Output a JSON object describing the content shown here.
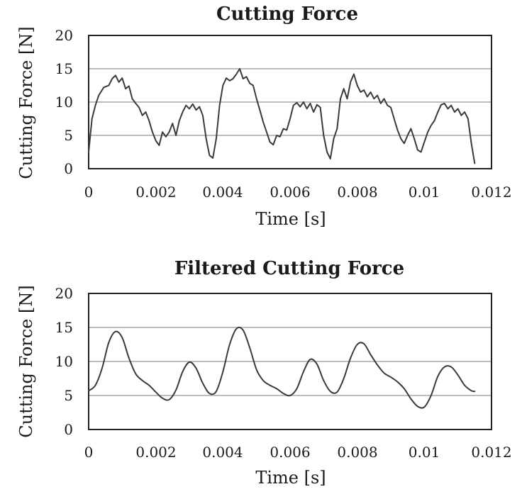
{
  "chart_data": [
    {
      "type": "line",
      "title": "Cutting Force",
      "xlabel": "Time [s]",
      "ylabel": "Cutting Force [N]",
      "xlim": [
        0,
        0.012
      ],
      "ylim": [
        0,
        20
      ],
      "xticks": [
        "0",
        "0.002",
        "0.004",
        "0.006",
        "0.008",
        "0.01",
        "0.012"
      ],
      "yticks": [
        "0",
        "5",
        "10",
        "15",
        "20"
      ],
      "grid": "horizontal",
      "series": [
        {
          "x": [
            0,
            0.0001,
            0.0002,
            0.0003,
            0.00045,
            0.0006,
            0.0007,
            0.0008,
            0.0009,
            0.001,
            0.0011,
            0.0012,
            0.0013,
            0.0014,
            0.0015,
            0.0016,
            0.0017,
            0.0018,
            0.0019,
            0.002,
            0.0021,
            0.0022,
            0.0023,
            0.0024,
            0.0025,
            0.0026,
            0.0027,
            0.0028,
            0.0029,
            0.003,
            0.0031,
            0.0032,
            0.0033,
            0.0034,
            0.0035,
            0.0036,
            0.0037,
            0.0038,
            0.0039,
            0.004,
            0.0041,
            0.0042,
            0.0043,
            0.0044,
            0.0045,
            0.0046,
            0.0047,
            0.0048,
            0.0049,
            0.005,
            0.0051,
            0.0052,
            0.0053,
            0.0054,
            0.0055,
            0.0056,
            0.0057,
            0.0058,
            0.0059,
            0.006,
            0.0061,
            0.0062,
            0.0063,
            0.0064,
            0.0065,
            0.0066,
            0.0067,
            0.0068,
            0.0069,
            0.007,
            0.0071,
            0.0072,
            0.0073,
            0.0074,
            0.0075,
            0.0076,
            0.0077,
            0.0078,
            0.0079,
            0.008,
            0.0081,
            0.0082,
            0.0083,
            0.0084,
            0.0085,
            0.0086,
            0.0087,
            0.0088,
            0.0089,
            0.009,
            0.0091,
            0.0092,
            0.0093,
            0.0094,
            0.0095,
            0.0096,
            0.0097,
            0.0098,
            0.0099,
            0.01,
            0.0101,
            0.0102,
            0.0103,
            0.0104,
            0.0105,
            0.0106,
            0.0107,
            0.0108,
            0.0109,
            0.011,
            0.0111,
            0.0112,
            0.0113,
            0.0114,
            0.0115
          ],
          "y": [
            2.5,
            7.5,
            9.5,
            11.0,
            12.2,
            12.5,
            13.5,
            14.0,
            13.0,
            13.6,
            12.0,
            12.4,
            10.5,
            9.8,
            9.2,
            8.0,
            8.5,
            7.2,
            5.5,
            4.2,
            3.5,
            5.5,
            4.8,
            5.5,
            6.8,
            5.0,
            7.2,
            8.5,
            9.5,
            9.0,
            9.7,
            8.8,
            9.3,
            8.0,
            4.5,
            2.0,
            1.6,
            4.5,
            9.5,
            12.5,
            13.6,
            13.2,
            13.5,
            14.2,
            15.0,
            13.5,
            13.8,
            12.8,
            12.5,
            10.5,
            8.8,
            7.0,
            5.5,
            4.0,
            3.6,
            5.0,
            4.8,
            6.0,
            5.8,
            7.5,
            9.5,
            9.9,
            9.3,
            10.0,
            9.0,
            9.8,
            8.5,
            9.6,
            9.2,
            5.0,
            2.5,
            1.5,
            4.5,
            6.0,
            10.5,
            12.0,
            10.5,
            13.0,
            14.2,
            12.5,
            11.5,
            11.8,
            10.8,
            11.5,
            10.5,
            11.0,
            9.8,
            10.5,
            9.5,
            9.2,
            7.5,
            5.8,
            4.5,
            3.8,
            5.0,
            6.0,
            4.5,
            2.8,
            2.5,
            4.0,
            5.5,
            6.5,
            7.2,
            8.5,
            9.6,
            9.8,
            9.0,
            9.5,
            8.5,
            9.0,
            8.0,
            8.5,
            7.5,
            3.8,
            0.8
          ]
        }
      ]
    },
    {
      "type": "line",
      "title": "Filtered Cutting Force",
      "xlabel": "Time [s]",
      "ylabel": "Cutting Force [N]",
      "xlim": [
        0,
        0.012
      ],
      "ylim": [
        0,
        20
      ],
      "xticks": [
        "0",
        "0.002",
        "0.004",
        "0.006",
        "0.008",
        "0.01",
        "0.012"
      ],
      "yticks": [
        "0",
        "5",
        "10",
        "15",
        "20"
      ],
      "grid": "horizontal",
      "series": [
        {
          "x": [
            0,
            0.0002,
            0.0004,
            0.0006,
            0.0008,
            0.001,
            0.0012,
            0.0014,
            0.0016,
            0.0018,
            0.002,
            0.0022,
            0.0024,
            0.0026,
            0.0028,
            0.003,
            0.0032,
            0.0034,
            0.0036,
            0.0038,
            0.004,
            0.0042,
            0.0044,
            0.0046,
            0.0048,
            0.005,
            0.0052,
            0.0054,
            0.0056,
            0.0058,
            0.006,
            0.0062,
            0.0064,
            0.0066,
            0.0068,
            0.007,
            0.0072,
            0.0074,
            0.0076,
            0.0078,
            0.008,
            0.0082,
            0.0084,
            0.0086,
            0.0088,
            0.009,
            0.0092,
            0.0094,
            0.0096,
            0.0098,
            0.01,
            0.0102,
            0.0104,
            0.0106,
            0.0108,
            0.011,
            0.0112,
            0.0114,
            0.0115
          ],
          "y": [
            5.7,
            6.5,
            9.0,
            12.8,
            14.4,
            13.5,
            10.5,
            8.2,
            7.2,
            6.5,
            5.5,
            4.6,
            4.4,
            5.8,
            8.5,
            9.9,
            9.0,
            6.8,
            5.3,
            5.6,
            8.5,
            12.5,
            14.8,
            14.6,
            12.0,
            8.8,
            7.2,
            6.5,
            6.0,
            5.3,
            5.0,
            6.0,
            8.5,
            10.3,
            9.6,
            7.2,
            5.6,
            5.5,
            7.5,
            10.5,
            12.5,
            12.6,
            11.0,
            9.5,
            8.3,
            7.7,
            7.0,
            6.0,
            4.5,
            3.4,
            3.3,
            5.0,
            7.8,
            9.2,
            9.2,
            8.0,
            6.5,
            5.7,
            5.6
          ]
        }
      ]
    }
  ]
}
